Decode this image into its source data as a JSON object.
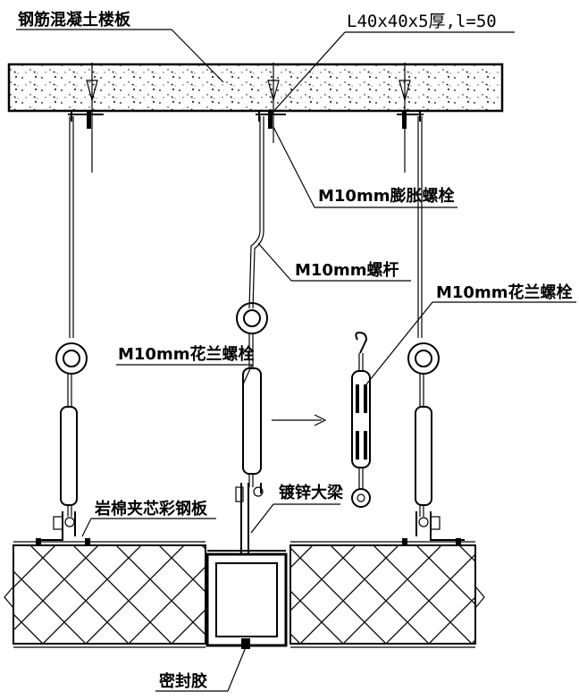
{
  "labels": {
    "slab": "钢筋混凝土楼板",
    "angle": "L40x40x5厚,l=50",
    "expansion_bolt": "M10mm膨胀螺栓",
    "rod": "M10mm螺杆",
    "turnbuckle_right": "M10mm花兰螺栓",
    "turnbuckle_left": "M10mm花兰螺栓",
    "panel": "岩棉夹芯彩钢板",
    "beam": "镀锌大梁",
    "sealant": "密封胶"
  },
  "colors": {
    "line": "#000000",
    "background": "#ffffff"
  }
}
